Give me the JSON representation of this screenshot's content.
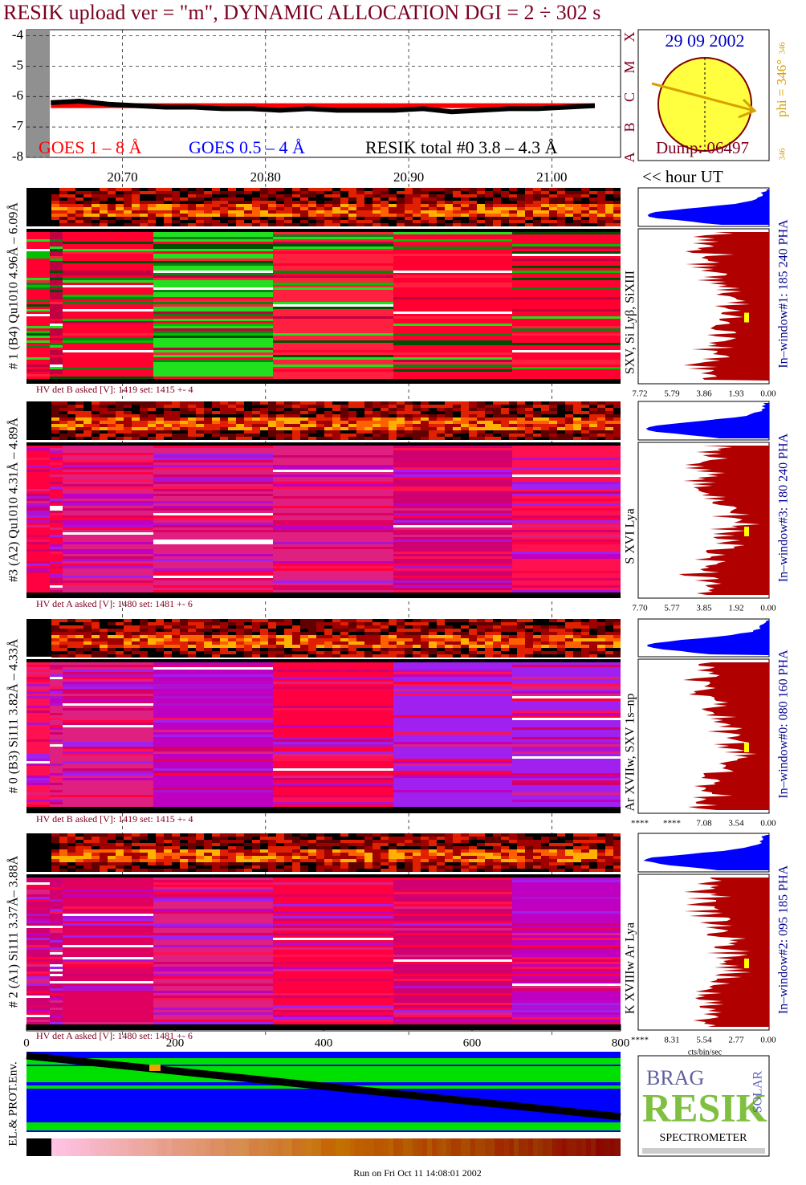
{
  "chart_data": [
    {
      "type": "line",
      "title": "RESIK upload ver = \"m\", DYNAMIC ALLOCATION  DGI =   2 ÷ 302 s",
      "x_label": "<< hour UT",
      "x": [
        20.65,
        20.67,
        20.69,
        20.71,
        20.73,
        20.75,
        20.77,
        20.79,
        20.81,
        20.83,
        20.85,
        20.87,
        20.89,
        20.91,
        20.93,
        20.95,
        20.97,
        20.99,
        21.01,
        21.03
      ],
      "series": [
        {
          "name": "GOES 1 – 8 Å",
          "color": "#ff0000",
          "values": [
            -6.3,
            -6.3,
            -6.3,
            -6.3,
            -6.3,
            -6.3,
            -6.3,
            -6.3,
            -6.3,
            -6.3,
            -6.3,
            -6.3,
            -6.3,
            -6.3,
            -6.3,
            -6.3,
            -6.3,
            -6.3,
            -6.3,
            -6.3
          ]
        },
        {
          "name": "GOES 0.5 – 4 Å",
          "color": "#0000ff",
          "values": [
            null,
            null,
            null,
            null,
            null,
            null,
            null,
            null,
            null,
            null,
            null,
            null,
            null,
            null,
            null,
            null,
            null,
            null,
            null,
            null
          ]
        },
        {
          "name": "RESIK total #0  3.8 – 4.3 Å",
          "color": "#000000",
          "values": [
            -6.2,
            -6.15,
            -6.25,
            -6.3,
            -6.35,
            -6.35,
            -6.4,
            -6.4,
            -6.45,
            -6.4,
            -6.45,
            -6.45,
            -6.45,
            -6.4,
            -6.5,
            -6.45,
            -6.4,
            -6.4,
            -6.35,
            -6.3
          ]
        }
      ],
      "xlim": [
        20.633,
        21.048
      ],
      "xticks": [
        {
          "value": 20.7,
          "label": "20.70"
        },
        {
          "value": 20.8,
          "label": "20.80"
        },
        {
          "value": 20.9,
          "label": "20.90"
        },
        {
          "value": 21.0,
          "label": "21.00"
        }
      ],
      "ylim": [
        -8,
        -3.8
      ],
      "yticks": [
        -4,
        -5,
        -6,
        -7,
        -8
      ],
      "grid": true
    }
  ],
  "status": {
    "date": "29 09 2002",
    "dump": "Dump: 06497",
    "phi": "phi = 346°",
    "phi_small": "346",
    "phi_small_top": "346",
    "goes_classes": [
      "A",
      "B",
      "C",
      "M",
      "X"
    ]
  },
  "pixel_axis": {
    "xlim": [
      0,
      800
    ],
    "xticks": [
      0,
      200,
      400,
      600,
      800
    ]
  },
  "panels": [
    {
      "label": "# 1 (B4) Qu1010 4.96Å – 6.09Å",
      "hv": "HV det B asked [V]:  1419 set:  1415 +-    4",
      "lines": "SXV, Si Lyβ, SiXIII",
      "window": "In–window#1:  185 240 PHA",
      "hist_ticks": [
        "7.72",
        "5.79",
        "3.86",
        "1.93",
        "0.00"
      ]
    },
    {
      "label": "#3 (A2) Qu1010  4.31Å – 4.89Å",
      "hv": "HV det A asked [V]:  1480 set:  1481 +-    6",
      "lines": "S XVI Lya",
      "window": "In–window#3:  180 240 PHA",
      "hist_ticks": [
        "7.70",
        "5.77",
        "3.85",
        "1.92",
        "0.00"
      ]
    },
    {
      "label": "# 0 (B3) Si111  3.82Å – 4.33Å",
      "hv": "HV det B asked [V]:  1419 set:  1415 +-    4",
      "lines": "Ar XVIIw,  SXV 1s–np",
      "window": "In–window#0:  080 160 PHA",
      "hist_ticks": [
        "****",
        "****",
        "7.08",
        "3.54",
        "0.00"
      ]
    },
    {
      "label": "# 2 (A1) Si111  3.37Å– 3.88Å",
      "hv": "HV det A asked [V]:  1480 set:  1481 +-    6",
      "lines": "K XVIIIw  Ar Lya",
      "window": "In–window#2:  095 185 PHA",
      "hist_ticks": [
        "****",
        "8.31",
        "5.54",
        "2.77",
        "0.00"
      ]
    }
  ],
  "hist_unit": "cts/bin/sec",
  "env_label": "EL.& PROT.Env.",
  "logo": {
    "top": "BRAG",
    "name": "RESIK",
    "side": "SOLAR",
    "caption": "SPECTROMETER"
  },
  "footer": "Run on Fri Oct 11 14:08:01 2002"
}
